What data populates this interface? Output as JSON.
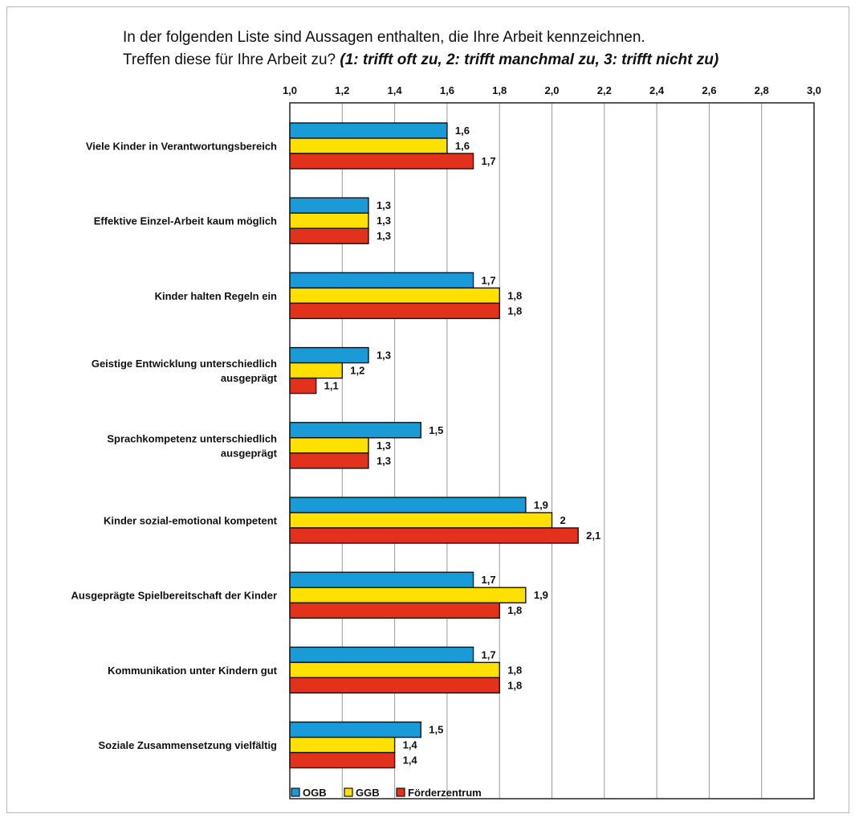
{
  "chart_data": {
    "type": "bar",
    "orientation": "horizontal",
    "title_line1": "In der folgenden Liste sind Aussagen enthalten, die Ihre Arbeit kennzeichnen.",
    "title_line2_normal": "Treffen diese für Ihre Arbeit zu? ",
    "title_line2_italic": "(1: trifft oft zu, 2: trifft manchmal zu, 3: trifft nicht zu)",
    "xlim": [
      1.0,
      3.0
    ],
    "x_ticks": [
      "1,0",
      "1,2",
      "1,4",
      "1,6",
      "1,8",
      "2,0",
      "2,2",
      "2,4",
      "2,6",
      "2,8",
      "3,0"
    ],
    "x_tick_values": [
      1.0,
      1.2,
      1.4,
      1.6,
      1.8,
      2.0,
      2.2,
      2.4,
      2.6,
      2.8,
      3.0
    ],
    "grid": true,
    "legend_position": "bottom",
    "categories": [
      [
        "Viele Kinder in Verantwortungsbereich"
      ],
      [
        "Effektive Einzel-Arbeit kaum möglich"
      ],
      [
        "Kinder halten Regeln ein"
      ],
      [
        "Geistige Entwicklung unterschiedlich",
        "ausgeprägt"
      ],
      [
        "Sprachkompetenz unterschiedlich",
        "ausgeprägt"
      ],
      [
        "Kinder sozial-emotional kompetent"
      ],
      [
        "Ausgeprägte Spielbereitschaft der Kinder"
      ],
      [
        "Kommunikation unter Kindern gut"
      ],
      [
        "Soziale Zusammensetzung vielfältig"
      ]
    ],
    "series": [
      {
        "name": "OGB",
        "color": "#1a9ad6",
        "values": [
          1.6,
          1.3,
          1.7,
          1.3,
          1.5,
          1.9,
          1.7,
          1.7,
          1.5
        ],
        "labels": [
          "1,6",
          "1,3",
          "1,7",
          "1,3",
          "1,5",
          "1,9",
          "1,7",
          "1,7",
          "1,5"
        ]
      },
      {
        "name": "GGB",
        "color": "#ffe000",
        "values": [
          1.6,
          1.3,
          1.8,
          1.2,
          1.3,
          2.0,
          1.9,
          1.8,
          1.4
        ],
        "labels": [
          "1,6",
          "1,3",
          "1,8",
          "1,2",
          "1,3",
          "2",
          "1,9",
          "1,8",
          "1,4"
        ]
      },
      {
        "name": "Förderzentrum",
        "color": "#e3321c",
        "values": [
          1.7,
          1.3,
          1.8,
          1.1,
          1.3,
          2.1,
          1.8,
          1.8,
          1.4
        ],
        "labels": [
          "1,7",
          "1,3",
          "1,8",
          "1,1",
          "1,3",
          "2,1",
          "1,8",
          "1,8",
          "1,4"
        ]
      }
    ]
  }
}
